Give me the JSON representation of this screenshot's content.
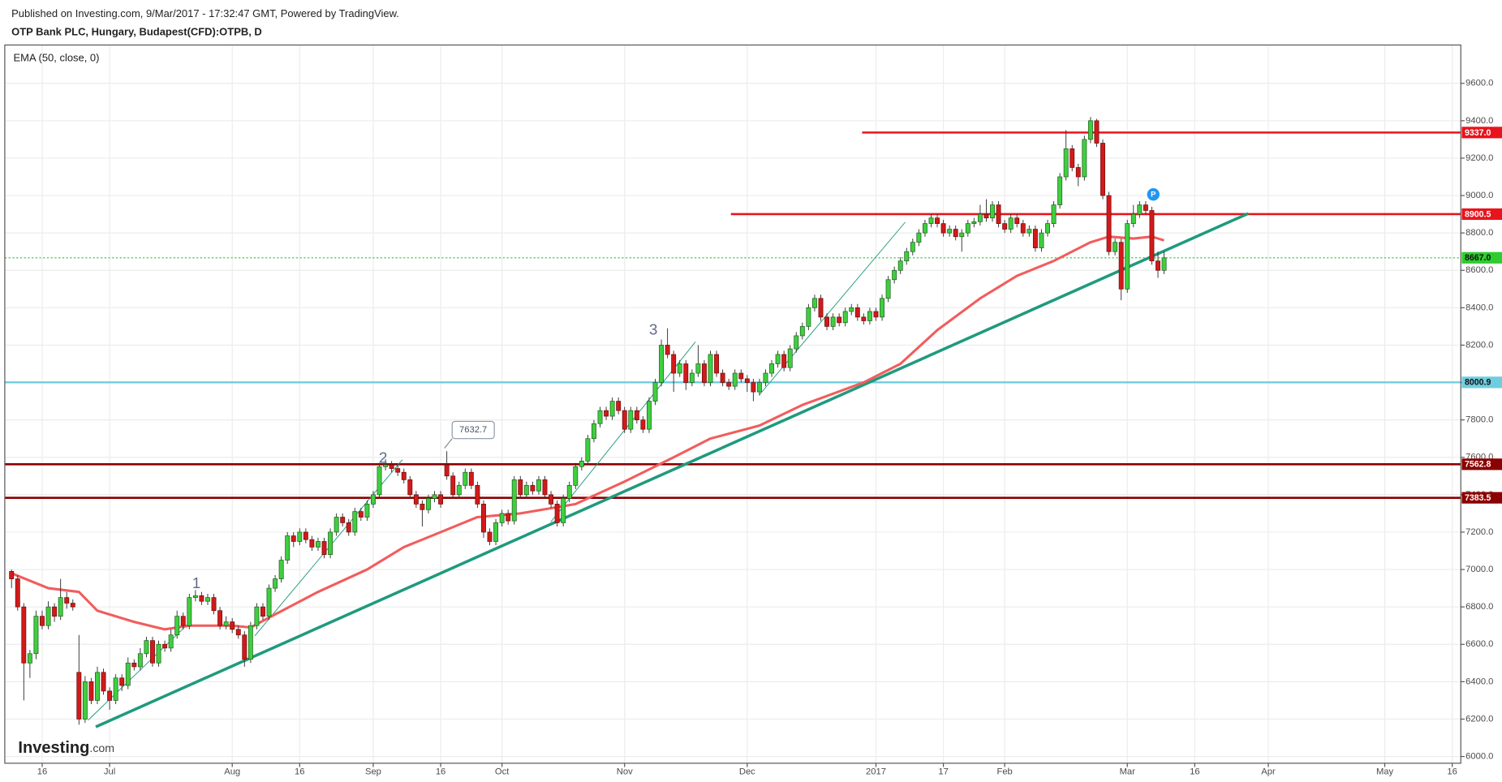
{
  "chart_data": {
    "type": "candlestick",
    "subtitle": "Published on Investing.com, 9/Mar/2017 - 17:32:47 GMT, Powered by TradingView.",
    "title": "OTP Bank PLC, Hungary, Budapest(CFD):OTPB, D",
    "indicator_label": "EMA (50, close, 0)",
    "logo": "Investing",
    "logo_suffix": ".com",
    "wave_labels": [
      "1",
      "2",
      "3"
    ],
    "marker": "P",
    "up_color": "#3fcf3f",
    "down_color": "#d11a1a",
    "xlim": [
      -1.1,
      236.4
    ],
    "ylim": [
      5964,
      9805
    ],
    "grid": true,
    "xticks": [
      {
        "value": 5,
        "label": "16"
      },
      {
        "value": 16,
        "label": "Jul"
      },
      {
        "value": 36,
        "label": "Aug"
      },
      {
        "value": 47,
        "label": "16"
      },
      {
        "value": 59,
        "label": "Sep"
      },
      {
        "value": 70,
        "label": "16"
      },
      {
        "value": 80,
        "label": "Oct"
      },
      {
        "value": 100,
        "label": "Nov"
      },
      {
        "value": 120,
        "label": "Dec"
      },
      {
        "value": 141,
        "label": "2017"
      },
      {
        "value": 152,
        "label": "17"
      },
      {
        "value": 162,
        "label": "Feb"
      },
      {
        "value": 182,
        "label": "Mar"
      },
      {
        "value": 193,
        "label": "16"
      },
      {
        "value": 205,
        "label": "Apr"
      },
      {
        "value": 224,
        "label": "May"
      },
      {
        "value": 235,
        "label": "16"
      }
    ],
    "yticks": [
      {
        "value": 6000,
        "label": "6000.0"
      },
      {
        "value": 6200,
        "label": "6200.0"
      },
      {
        "value": 6400,
        "label": "6400.0"
      },
      {
        "value": 6600,
        "label": "6600.0"
      },
      {
        "value": 6800,
        "label": "6800.0"
      },
      {
        "value": 7000,
        "label": "7000.0"
      },
      {
        "value": 7200,
        "label": "7200.0"
      },
      {
        "value": 7400,
        "label": "7400.0"
      },
      {
        "value": 7600,
        "label": "7600.0"
      },
      {
        "value": 7800,
        "label": "7800.0"
      },
      {
        "value": 8000,
        "label": "8000.0"
      },
      {
        "value": 8200,
        "label": "8200.0"
      },
      {
        "value": 8400,
        "label": "8400.0"
      },
      {
        "value": 8600,
        "label": "8600.0"
      },
      {
        "value": 8800,
        "label": "8800.0"
      },
      {
        "value": 9000,
        "label": "9000.0"
      },
      {
        "value": 9200,
        "label": "9200.0"
      },
      {
        "value": 9400,
        "label": "9400.0"
      },
      {
        "value": 9600,
        "label": "9600.0"
      }
    ],
    "levels": [
      {
        "value": 9337,
        "label": "9337.0",
        "color": "#e8141c"
      },
      {
        "value": 8900.5,
        "label": "8900.5",
        "color": "#e8141c"
      },
      {
        "value": 8667,
        "label": "8667.0",
        "color": "#2ecc2e"
      },
      {
        "value": 8000.9,
        "label": "8000.9",
        "color": "#6fcde0"
      },
      {
        "value": 7562.8,
        "label": "7562.8",
        "color": "#8b0000"
      },
      {
        "value": 7383.5,
        "label": "7383.5",
        "color": "#8b0000"
      }
    ],
    "ema": {
      "name": "EMA (50, close, 0)",
      "color": "#f25c5c",
      "x": [
        0,
        6,
        11,
        14,
        20,
        25,
        29,
        36,
        39,
        43,
        50,
        58,
        64,
        70,
        76,
        83,
        92,
        100,
        108,
        114,
        122,
        129,
        139,
        145,
        151,
        158,
        164,
        170,
        176,
        179,
        183,
        186,
        188
      ],
      "values": [
        6980,
        6900,
        6880,
        6780,
        6720,
        6680,
        6700,
        6700,
        6690,
        6760,
        6880,
        7000,
        7120,
        7200,
        7280,
        7300,
        7350,
        7470,
        7600,
        7700,
        7770,
        7880,
        8000,
        8100,
        8280,
        8450,
        8570,
        8650,
        8750,
        8780,
        8770,
        8780,
        8760
      ]
    },
    "ohlc": [
      [
        6990,
        7000,
        6900,
        6950
      ],
      [
        6950,
        6970,
        6780,
        6800
      ],
      [
        6800,
        6820,
        6300,
        6500
      ],
      [
        6500,
        6570,
        6420,
        6550
      ],
      [
        6550,
        6780,
        6520,
        6750
      ],
      [
        6750,
        6780,
        6680,
        6700
      ],
      [
        6700,
        6830,
        6680,
        6800
      ],
      [
        6800,
        6820,
        6720,
        6750
      ],
      [
        6750,
        6950,
        6730,
        6850
      ],
      [
        6850,
        6880,
        6790,
        6820
      ],
      [
        6820,
        6840,
        6780,
        6800
      ],
      [
        6450,
        6650,
        6170,
        6200
      ],
      [
        6200,
        6430,
        6180,
        6400
      ],
      [
        6400,
        6420,
        6280,
        6300
      ],
      [
        6300,
        6480,
        6280,
        6450
      ],
      [
        6450,
        6470,
        6330,
        6350
      ],
      [
        6350,
        6370,
        6250,
        6300
      ],
      [
        6300,
        6440,
        6280,
        6420
      ],
      [
        6420,
        6440,
        6350,
        6380
      ],
      [
        6380,
        6530,
        6360,
        6500
      ],
      [
        6500,
        6520,
        6460,
        6480
      ],
      [
        6480,
        6580,
        6460,
        6550
      ],
      [
        6550,
        6640,
        6530,
        6620
      ],
      [
        6620,
        6640,
        6480,
        6500
      ],
      [
        6500,
        6620,
        6480,
        6600
      ],
      [
        6600,
        6620,
        6560,
        6580
      ],
      [
        6580,
        6680,
        6560,
        6650
      ],
      [
        6650,
        6780,
        6630,
        6750
      ],
      [
        6750,
        6770,
        6680,
        6700
      ],
      [
        6700,
        6870,
        6680,
        6850
      ],
      [
        6850,
        6890,
        6830,
        6860
      ],
      [
        6860,
        6880,
        6810,
        6830
      ],
      [
        6830,
        6870,
        6810,
        6850
      ],
      [
        6850,
        6870,
        6760,
        6780
      ],
      [
        6780,
        6800,
        6680,
        6700
      ],
      [
        6700,
        6750,
        6680,
        6720
      ],
      [
        6720,
        6740,
        6660,
        6680
      ],
      [
        6680,
        6700,
        6630,
        6650
      ],
      [
        6650,
        6670,
        6480,
        6520
      ],
      [
        6520,
        6720,
        6500,
        6700
      ],
      [
        6700,
        6820,
        6680,
        6800
      ],
      [
        6800,
        6820,
        6730,
        6750
      ],
      [
        6750,
        6920,
        6730,
        6900
      ],
      [
        6900,
        6970,
        6880,
        6950
      ],
      [
        6950,
        7070,
        6930,
        7050
      ],
      [
        7050,
        7200,
        7030,
        7180
      ],
      [
        7180,
        7200,
        7120,
        7150
      ],
      [
        7150,
        7220,
        7130,
        7200
      ],
      [
        7200,
        7220,
        7140,
        7160
      ],
      [
        7160,
        7180,
        7100,
        7120
      ],
      [
        7120,
        7170,
        7100,
        7150
      ],
      [
        7150,
        7170,
        7060,
        7080
      ],
      [
        7080,
        7220,
        7060,
        7200
      ],
      [
        7200,
        7300,
        7180,
        7280
      ],
      [
        7280,
        7300,
        7230,
        7250
      ],
      [
        7250,
        7270,
        7180,
        7200
      ],
      [
        7200,
        7330,
        7180,
        7310
      ],
      [
        7310,
        7330,
        7260,
        7280
      ],
      [
        7280,
        7370,
        7260,
        7350
      ],
      [
        7350,
        7420,
        7330,
        7400
      ],
      [
        7400,
        7570,
        7380,
        7550
      ],
      [
        7550,
        7590,
        7530,
        7560
      ],
      [
        7560,
        7580,
        7520,
        7540
      ],
      [
        7540,
        7560,
        7500,
        7520
      ],
      [
        7520,
        7540,
        7460,
        7480
      ],
      [
        7480,
        7500,
        7380,
        7400
      ],
      [
        7400,
        7420,
        7330,
        7350
      ],
      [
        7350,
        7370,
        7230,
        7320
      ],
      [
        7320,
        7400,
        7300,
        7380
      ],
      [
        7380,
        7420,
        7360,
        7400
      ],
      [
        7400,
        7420,
        7330,
        7350
      ],
      [
        7560,
        7632.7,
        7480,
        7500
      ],
      [
        7500,
        7520,
        7380,
        7400
      ],
      [
        7400,
        7470,
        7380,
        7450
      ],
      [
        7450,
        7540,
        7430,
        7520
      ],
      [
        7520,
        7540,
        7430,
        7450
      ],
      [
        7450,
        7470,
        7330,
        7350
      ],
      [
        7350,
        7370,
        7170,
        7200
      ],
      [
        7200,
        7220,
        7130,
        7150
      ],
      [
        7150,
        7270,
        7130,
        7250
      ],
      [
        7250,
        7320,
        7230,
        7300
      ],
      [
        7300,
        7320,
        7240,
        7260
      ],
      [
        7260,
        7500,
        7240,
        7480
      ],
      [
        7480,
        7500,
        7380,
        7400
      ],
      [
        7400,
        7470,
        7380,
        7450
      ],
      [
        7450,
        7470,
        7400,
        7420
      ],
      [
        7420,
        7500,
        7400,
        7480
      ],
      [
        7480,
        7500,
        7380,
        7400
      ],
      [
        7400,
        7420,
        7330,
        7350
      ],
      [
        7350,
        7370,
        7230,
        7250
      ],
      [
        7250,
        7400,
        7230,
        7380
      ],
      [
        7380,
        7470,
        7360,
        7450
      ],
      [
        7450,
        7570,
        7430,
        7550
      ],
      [
        7550,
        7600,
        7530,
        7580
      ],
      [
        7580,
        7720,
        7560,
        7700
      ],
      [
        7700,
        7800,
        7680,
        7780
      ],
      [
        7780,
        7870,
        7760,
        7850
      ],
      [
        7850,
        7870,
        7800,
        7820
      ],
      [
        7820,
        7920,
        7800,
        7900
      ],
      [
        7900,
        7920,
        7830,
        7850
      ],
      [
        7850,
        7870,
        7730,
        7750
      ],
      [
        7750,
        7870,
        7730,
        7850
      ],
      [
        7850,
        7870,
        7780,
        7800
      ],
      [
        7800,
        7820,
        7730,
        7750
      ],
      [
        7750,
        7920,
        7730,
        7900
      ],
      [
        7900,
        8020,
        7880,
        8000
      ],
      [
        8000,
        8230,
        7980,
        8200
      ],
      [
        8200,
        8290,
        8130,
        8150
      ],
      [
        8150,
        8170,
        7950,
        8050
      ],
      [
        8050,
        8120,
        8030,
        8100
      ],
      [
        8100,
        8120,
        7960,
        8000
      ],
      [
        8000,
        8070,
        7980,
        8050
      ],
      [
        8050,
        8200,
        8030,
        8100
      ],
      [
        8100,
        8120,
        7980,
        8000
      ],
      [
        8000,
        8170,
        7980,
        8150
      ],
      [
        8150,
        8170,
        8030,
        8050
      ],
      [
        8050,
        8070,
        7980,
        8000
      ],
      [
        8000,
        8020,
        7960,
        7980
      ],
      [
        7980,
        8070,
        7960,
        8050
      ],
      [
        8050,
        8070,
        8000,
        8020
      ],
      [
        8020,
        8040,
        7950,
        8000
      ],
      [
        8000,
        8020,
        7900,
        7950
      ],
      [
        7950,
        8020,
        7930,
        8000
      ],
      [
        8000,
        8070,
        7980,
        8050
      ],
      [
        8050,
        8120,
        8030,
        8100
      ],
      [
        8100,
        8170,
        8080,
        8150
      ],
      [
        8150,
        8170,
        8060,
        8080
      ],
      [
        8080,
        8200,
        8060,
        8180
      ],
      [
        8180,
        8270,
        8160,
        8250
      ],
      [
        8250,
        8320,
        8230,
        8300
      ],
      [
        8300,
        8420,
        8280,
        8400
      ],
      [
        8400,
        8470,
        8380,
        8450
      ],
      [
        8450,
        8470,
        8330,
        8350
      ],
      [
        8350,
        8370,
        8280,
        8300
      ],
      [
        8300,
        8370,
        8280,
        8350
      ],
      [
        8350,
        8370,
        8300,
        8320
      ],
      [
        8320,
        8400,
        8300,
        8380
      ],
      [
        8380,
        8420,
        8360,
        8400
      ],
      [
        8400,
        8420,
        8330,
        8350
      ],
      [
        8350,
        8370,
        8310,
        8330
      ],
      [
        8330,
        8400,
        8310,
        8380
      ],
      [
        8380,
        8400,
        8330,
        8350
      ],
      [
        8350,
        8470,
        8330,
        8450
      ],
      [
        8450,
        8570,
        8430,
        8550
      ],
      [
        8550,
        8620,
        8530,
        8600
      ],
      [
        8600,
        8670,
        8580,
        8650
      ],
      [
        8650,
        8720,
        8630,
        8700
      ],
      [
        8700,
        8770,
        8680,
        8750
      ],
      [
        8750,
        8820,
        8730,
        8800
      ],
      [
        8800,
        8870,
        8780,
        8850
      ],
      [
        8850,
        8900,
        8830,
        8880
      ],
      [
        8880,
        8900,
        8830,
        8850
      ],
      [
        8850,
        8870,
        8780,
        8800
      ],
      [
        8800,
        8840,
        8780,
        8820
      ],
      [
        8820,
        8840,
        8760,
        8780
      ],
      [
        8780,
        8820,
        8700,
        8800
      ],
      [
        8800,
        8870,
        8780,
        8850
      ],
      [
        8850,
        8880,
        8830,
        8860
      ],
      [
        8860,
        8950,
        8840,
        8900
      ],
      [
        8900,
        8980,
        8860,
        8880
      ],
      [
        8880,
        8970,
        8860,
        8950
      ],
      [
        8950,
        8970,
        8830,
        8850
      ],
      [
        8850,
        8870,
        8800,
        8820
      ],
      [
        8820,
        8900,
        8800,
        8880
      ],
      [
        8880,
        8900,
        8830,
        8850
      ],
      [
        8850,
        8870,
        8780,
        8800
      ],
      [
        8800,
        8840,
        8780,
        8820
      ],
      [
        8820,
        8840,
        8700,
        8720
      ],
      [
        8720,
        8820,
        8700,
        8800
      ],
      [
        8800,
        8870,
        8780,
        8850
      ],
      [
        8850,
        8970,
        8830,
        8950
      ],
      [
        8950,
        9120,
        8930,
        9100
      ],
      [
        9100,
        9350,
        9080,
        9250
      ],
      [
        9250,
        9270,
        9130,
        9150
      ],
      [
        9150,
        9170,
        9050,
        9100
      ],
      [
        9100,
        9320,
        9080,
        9300
      ],
      [
        9300,
        9420,
        9280,
        9400
      ],
      [
        9400,
        9410,
        9260,
        9280
      ],
      [
        9280,
        9300,
        8980,
        9000
      ],
      [
        9000,
        9020,
        8680,
        8700
      ],
      [
        8700,
        8770,
        8680,
        8750
      ],
      [
        8750,
        8770,
        8440,
        8500
      ],
      [
        8500,
        8870,
        8480,
        8850
      ],
      [
        8850,
        8950,
        8830,
        8900
      ],
      [
        8900,
        8970,
        8880,
        8950
      ],
      [
        8950,
        8970,
        8900,
        8920
      ],
      [
        8920,
        8940,
        8630,
        8650
      ],
      [
        8650,
        8700,
        8560,
        8600
      ],
      [
        8600,
        8700,
        8580,
        8667
      ]
    ]
  }
}
